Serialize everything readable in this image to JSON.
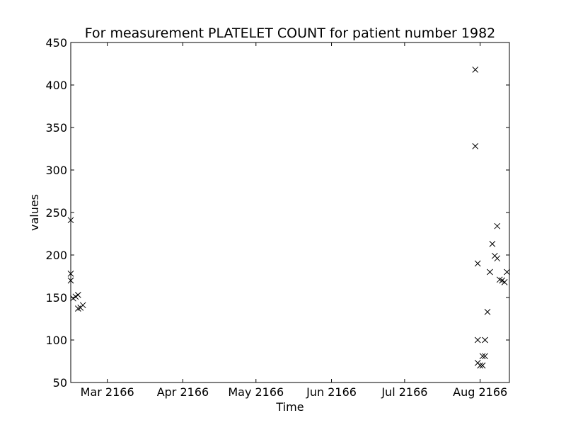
{
  "chart_data": {
    "type": "scatter",
    "title": "For measurement PLATELET COUNT for patient number 1982",
    "xlabel": "Time",
    "ylabel": "values",
    "marker": "x",
    "marker_color": "#000000",
    "xlim": [
      "2166-02-14",
      "2166-08-13"
    ],
    "ylim": [
      50,
      450
    ],
    "x_ticks": [
      {
        "date": "2166-03-01",
        "label": "Mar 2166"
      },
      {
        "date": "2166-04-01",
        "label": "Apr 2166"
      },
      {
        "date": "2166-05-01",
        "label": "May 2166"
      },
      {
        "date": "2166-06-01",
        "label": "Jun 2166"
      },
      {
        "date": "2166-07-01",
        "label": "Jul 2166"
      },
      {
        "date": "2166-08-01",
        "label": "Aug 2166"
      }
    ],
    "y_ticks": [
      {
        "value": 50,
        "label": "50"
      },
      {
        "value": 100,
        "label": "100"
      },
      {
        "value": 150,
        "label": "150"
      },
      {
        "value": 200,
        "label": "200"
      },
      {
        "value": 250,
        "label": "250"
      },
      {
        "value": 300,
        "label": "300"
      },
      {
        "value": 350,
        "label": "350"
      },
      {
        "value": 400,
        "label": "400"
      },
      {
        "value": 450,
        "label": "450"
      }
    ],
    "points": [
      {
        "x": "2166-02-14",
        "y": 241
      },
      {
        "x": "2166-02-14",
        "y": 178
      },
      {
        "x": "2166-02-14",
        "y": 170
      },
      {
        "x": "2166-02-15",
        "y": 149
      },
      {
        "x": "2166-02-16",
        "y": 151
      },
      {
        "x": "2166-02-17",
        "y": 153
      },
      {
        "x": "2166-02-17",
        "y": 137
      },
      {
        "x": "2166-02-18",
        "y": 138
      },
      {
        "x": "2166-02-19",
        "y": 141
      },
      {
        "x": "2166-07-30",
        "y": 418
      },
      {
        "x": "2166-07-30",
        "y": 328
      },
      {
        "x": "2166-07-31",
        "y": 190
      },
      {
        "x": "2166-07-31",
        "y": 100
      },
      {
        "x": "2166-07-31",
        "y": 73
      },
      {
        "x": "2166-08-01",
        "y": 70
      },
      {
        "x": "2166-08-02",
        "y": 81
      },
      {
        "x": "2166-08-02",
        "y": 70
      },
      {
        "x": "2166-08-03",
        "y": 81
      },
      {
        "x": "2166-08-03",
        "y": 100
      },
      {
        "x": "2166-08-04",
        "y": 133
      },
      {
        "x": "2166-08-05",
        "y": 180
      },
      {
        "x": "2166-08-06",
        "y": 213
      },
      {
        "x": "2166-08-07",
        "y": 199
      },
      {
        "x": "2166-08-08",
        "y": 234
      },
      {
        "x": "2166-08-08",
        "y": 196
      },
      {
        "x": "2166-08-09",
        "y": 171
      },
      {
        "x": "2166-08-10",
        "y": 170
      },
      {
        "x": "2166-08-11",
        "y": 168
      },
      {
        "x": "2166-08-12",
        "y": 180
      }
    ]
  }
}
